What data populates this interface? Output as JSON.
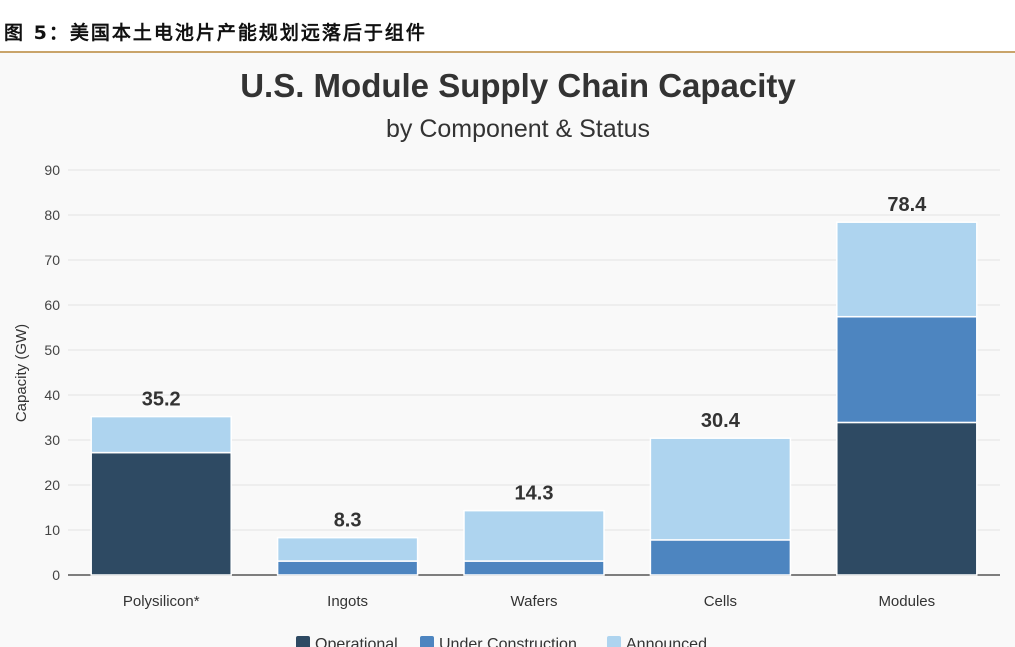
{
  "caption": "图 5：美国本土电池片产能规划远落后于组件",
  "chart_data": {
    "type": "bar",
    "stacked": true,
    "title": "U.S. Module Supply Chain Capacity",
    "subtitle": "by Component & Status",
    "xlabel": "",
    "ylabel": "Capacity (GW)",
    "ylim": [
      0,
      90
    ],
    "yticks": [
      0,
      10,
      20,
      30,
      40,
      50,
      60,
      70,
      80,
      90
    ],
    "grid": true,
    "legend_position": "bottom",
    "categories": [
      "Polysilicon*",
      "Ingots",
      "Wafers",
      "Cells",
      "Modules"
    ],
    "series": [
      {
        "name": "Operational",
        "color": "#2e4a63",
        "values": [
          27.2,
          0,
          0,
          0,
          33.9
        ]
      },
      {
        "name": "Under Construction",
        "color": "#4d85c0",
        "values": [
          0,
          3.1,
          3.1,
          7.8,
          23.5
        ]
      },
      {
        "name": "Announced",
        "color": "#aed4ef",
        "values": [
          8.0,
          5.2,
          11.2,
          22.6,
          21.0
        ]
      }
    ],
    "totals": [
      "35.2",
      "8.3",
      "14.3",
      "30.4",
      "78.4"
    ]
  }
}
